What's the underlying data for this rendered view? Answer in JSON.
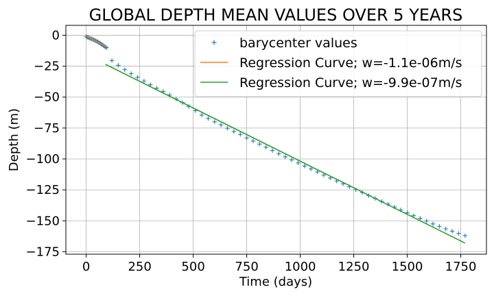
{
  "chart_data": {
    "type": "scatter",
    "title": "GLOBAL DEPTH MEAN VALUES OVER 5 YEARS",
    "xlabel": "Time (days)",
    "ylabel": "Depth (m)",
    "xlim": [
      -95,
      1870
    ],
    "ylim": [
      -177,
      8
    ],
    "xticks": [
      0,
      250,
      500,
      750,
      1000,
      1250,
      1500,
      1750
    ],
    "yticks": [
      0,
      -25,
      -50,
      -75,
      -100,
      -125,
      -150,
      -175
    ],
    "grid": true,
    "legend_position": "top-right",
    "series": [
      {
        "name": "barycenter values",
        "kind": "points",
        "marker": "+",
        "color": "#1f77b4",
        "points": [
          [
            0,
            -1.0
          ],
          [
            5,
            -1.5
          ],
          [
            10,
            -1.9
          ],
          [
            15,
            -2.3
          ],
          [
            20,
            -2.6
          ],
          [
            25,
            -2.9
          ],
          [
            30,
            -3.3
          ],
          [
            35,
            -3.7
          ],
          [
            40,
            -4.1
          ],
          [
            45,
            -4.6
          ],
          [
            50,
            -5.0
          ],
          [
            55,
            -5.5
          ],
          [
            60,
            -6.0
          ],
          [
            65,
            -6.6
          ],
          [
            70,
            -7.1
          ],
          [
            75,
            -7.7
          ],
          [
            80,
            -8.3
          ],
          [
            85,
            -8.9
          ],
          [
            90,
            -9.5
          ],
          [
            95,
            -10.1
          ],
          [
            120,
            -20.5
          ],
          [
            150,
            -24.3
          ],
          [
            180,
            -27.8
          ],
          [
            210,
            -31.0
          ],
          [
            240,
            -34.0
          ],
          [
            270,
            -37.0
          ],
          [
            300,
            -40.0
          ],
          [
            330,
            -42.8
          ],
          [
            360,
            -45.5
          ],
          [
            390,
            -48.3
          ],
          [
            420,
            -51.5
          ],
          [
            450,
            -54.5
          ],
          [
            480,
            -57.6
          ],
          [
            510,
            -60.9
          ],
          [
            540,
            -64.5
          ],
          [
            570,
            -67.2
          ],
          [
            600,
            -70.0
          ],
          [
            630,
            -72.5
          ],
          [
            660,
            -75.2
          ],
          [
            690,
            -77.8
          ],
          [
            720,
            -80.2
          ],
          [
            750,
            -83.0
          ],
          [
            780,
            -85.5
          ],
          [
            810,
            -88.0
          ],
          [
            840,
            -90.5
          ],
          [
            870,
            -93.2
          ],
          [
            900,
            -95.8
          ],
          [
            930,
            -98.3
          ],
          [
            960,
            -100.8
          ],
          [
            990,
            -103.2
          ],
          [
            1020,
            -105.7
          ],
          [
            1050,
            -108.1
          ],
          [
            1080,
            -110.5
          ],
          [
            1110,
            -113.0
          ],
          [
            1140,
            -115.4
          ],
          [
            1170,
            -117.8
          ],
          [
            1200,
            -120.1
          ],
          [
            1230,
            -122.5
          ],
          [
            1260,
            -124.9
          ],
          [
            1290,
            -127.2
          ],
          [
            1320,
            -129.6
          ],
          [
            1350,
            -131.9
          ],
          [
            1380,
            -134.3
          ],
          [
            1410,
            -136.6
          ],
          [
            1440,
            -138.9
          ],
          [
            1470,
            -141.2
          ],
          [
            1500,
            -143.5
          ],
          [
            1530,
            -145.8
          ],
          [
            1560,
            -148.0
          ],
          [
            1590,
            -150.2
          ],
          [
            1620,
            -152.5
          ],
          [
            1650,
            -154.5
          ],
          [
            1680,
            -156.5
          ],
          [
            1710,
            -158.4
          ],
          [
            1740,
            -160.2
          ],
          [
            1770,
            -162.0
          ]
        ]
      },
      {
        "name": "Regression Curve; w=-1.1e-06m/s",
        "kind": "line",
        "color": "#ff7f0e",
        "points": [
          [
            0,
            -0.5
          ],
          [
            95,
            -9.5
          ]
        ]
      },
      {
        "name": "Regression Curve; w=-9.9e-07m/s",
        "kind": "line",
        "color": "#2ca02c",
        "points": [
          [
            90,
            -23.5
          ],
          [
            1770,
            -168.0
          ]
        ]
      }
    ]
  }
}
